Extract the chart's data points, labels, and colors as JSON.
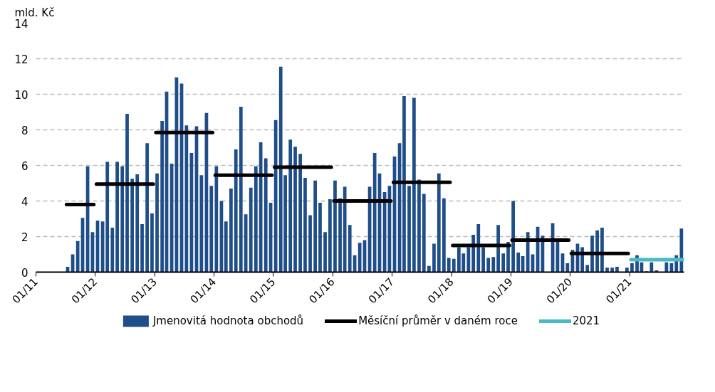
{
  "chart_data": {
    "type": "bar",
    "ylabel": "mld. Kč",
    "xlim": [
      "2011-01",
      "2021-12"
    ],
    "ylim": [
      0,
      14
    ],
    "yticks": [
      0,
      2,
      4,
      6,
      8,
      10,
      12,
      14
    ],
    "xticks": [
      {
        "value": "2011-01",
        "label": "01/11"
      },
      {
        "value": "2012-01",
        "label": "01/12"
      },
      {
        "value": "2013-01",
        "label": "01/13"
      },
      {
        "value": "2014-01",
        "label": "01/14"
      },
      {
        "value": "2015-01",
        "label": "01/15"
      },
      {
        "value": "2016-01",
        "label": "01/16"
      },
      {
        "value": "2017-01",
        "label": "01/17"
      },
      {
        "value": "2018-01",
        "label": "01/18"
      },
      {
        "value": "2019-01",
        "label": "01/19"
      },
      {
        "value": "2020-01",
        "label": "01/20"
      },
      {
        "value": "2021-01",
        "label": "01/21"
      }
    ],
    "grid": "y",
    "legend": "bottom",
    "series": [
      {
        "name": "Jmenovitá hodnota obchodů",
        "color": "#1f4e89",
        "x": [
          "2011-07",
          "2011-08",
          "2011-09",
          "2011-10",
          "2011-11",
          "2011-12",
          "2012-01",
          "2012-02",
          "2012-03",
          "2012-04",
          "2012-05",
          "2012-06",
          "2012-07",
          "2012-08",
          "2012-09",
          "2012-10",
          "2012-11",
          "2012-12",
          "2013-01",
          "2013-02",
          "2013-03",
          "2013-04",
          "2013-05",
          "2013-06",
          "2013-07",
          "2013-08",
          "2013-09",
          "2013-10",
          "2013-11",
          "2013-12",
          "2014-01",
          "2014-02",
          "2014-03",
          "2014-04",
          "2014-05",
          "2014-06",
          "2014-07",
          "2014-08",
          "2014-09",
          "2014-10",
          "2014-11",
          "2014-12",
          "2015-01",
          "2015-02",
          "2015-03",
          "2015-04",
          "2015-05",
          "2015-06",
          "2015-07",
          "2015-08",
          "2015-09",
          "2015-10",
          "2015-11",
          "2015-12",
          "2016-01",
          "2016-02",
          "2016-03",
          "2016-04",
          "2016-05",
          "2016-06",
          "2016-07",
          "2016-08",
          "2016-09",
          "2016-10",
          "2016-11",
          "2016-12",
          "2017-01",
          "2017-02",
          "2017-03",
          "2017-04",
          "2017-05",
          "2017-06",
          "2017-07",
          "2017-08",
          "2017-09",
          "2017-10",
          "2017-11",
          "2017-12",
          "2018-01",
          "2018-02",
          "2018-03",
          "2018-04",
          "2018-05",
          "2018-06",
          "2018-07",
          "2018-08",
          "2018-09",
          "2018-10",
          "2018-11",
          "2018-12",
          "2019-01",
          "2019-02",
          "2019-03",
          "2019-04",
          "2019-05",
          "2019-06",
          "2019-07",
          "2019-08",
          "2019-09",
          "2019-10",
          "2019-11",
          "2019-12",
          "2020-01",
          "2020-02",
          "2020-03",
          "2020-04",
          "2020-05",
          "2020-06",
          "2020-07",
          "2020-08",
          "2020-09",
          "2020-10",
          "2020-11",
          "2020-12",
          "2021-01",
          "2021-02",
          "2021-03",
          "2021-04",
          "2021-05",
          "2021-06",
          "2021-07",
          "2021-08",
          "2021-09",
          "2021-10",
          "2021-11"
        ],
        "values": [
          0.3,
          1.0,
          1.75,
          3.05,
          5.95,
          2.25,
          2.9,
          2.85,
          6.2,
          2.5,
          6.2,
          5.95,
          8.9,
          5.25,
          5.5,
          2.7,
          7.25,
          3.3,
          5.55,
          8.5,
          10.15,
          6.1,
          10.95,
          10.6,
          8.25,
          6.7,
          8.2,
          5.45,
          8.95,
          4.85,
          5.95,
          4.0,
          2.85,
          4.7,
          6.9,
          9.3,
          3.25,
          4.75,
          5.95,
          7.3,
          6.4,
          3.9,
          8.55,
          11.55,
          5.45,
          7.45,
          7.05,
          6.65,
          5.3,
          3.2,
          5.15,
          3.9,
          2.25,
          4.1,
          5.15,
          4.15,
          4.8,
          2.65,
          0.95,
          1.65,
          1.8,
          4.8,
          6.7,
          5.55,
          4.5,
          4.85,
          6.5,
          7.25,
          9.9,
          4.85,
          9.8,
          5.2,
          4.4,
          0.35,
          1.6,
          5.55,
          4.15,
          0.8,
          0.75,
          1.4,
          1.05,
          1.4,
          2.1,
          2.7,
          1.4,
          0.8,
          0.85,
          2.65,
          1.05,
          1.7,
          4.0,
          1.1,
          0.9,
          2.25,
          1.0,
          2.55,
          2.05,
          null,
          2.75,
          1.7,
          1.05,
          0.5,
          1.25,
          1.6,
          1.4,
          0.4,
          2.05,
          2.35,
          2.5,
          0.25,
          0.25,
          0.3,
          0,
          0.25,
          0.5,
          0.95,
          0.55,
          0.05,
          0.55,
          0.1,
          0,
          0.55,
          0.5,
          0.95,
          2.45
        ]
      },
      {
        "name": "Měsíční průměr v daném roce",
        "type": "line",
        "color": "#000000",
        "x": [
          "2011-07-08",
          "2011-12-23",
          "2012-01-01",
          "2012-01-08",
          "2012-12-23",
          "2013-01-01",
          "2013-01-08",
          "2013-12-23",
          "2014-01-01",
          "2014-01-08",
          "2014-12-23",
          "2015-01-01",
          "2015-01-08",
          "2015-12-23",
          "2016-01-01",
          "2016-01-08",
          "2016-12-23",
          "2017-01-01",
          "2017-01-08",
          "2017-12-23",
          "2018-01-01",
          "2018-01-08",
          "2018-12-23",
          "2019-01-01",
          "2019-01-08",
          "2019-12-23",
          "2020-01-01",
          "2020-01-08",
          "2020-12-23"
        ],
        "values": [
          3.8,
          3.8,
          null,
          4.95,
          4.95,
          null,
          7.85,
          7.85,
          null,
          5.45,
          5.45,
          null,
          5.9,
          5.9,
          null,
          4.0,
          4.0,
          null,
          5.05,
          5.05,
          null,
          1.5,
          1.5,
          null,
          1.8,
          1.8,
          null,
          1.05,
          1.05
        ]
      },
      {
        "name": "2021",
        "type": "line",
        "color": "#4bbac4",
        "x": [
          "2021-01-08",
          "2021-12-01"
        ],
        "values": [
          0.7,
          0.7
        ]
      }
    ]
  }
}
